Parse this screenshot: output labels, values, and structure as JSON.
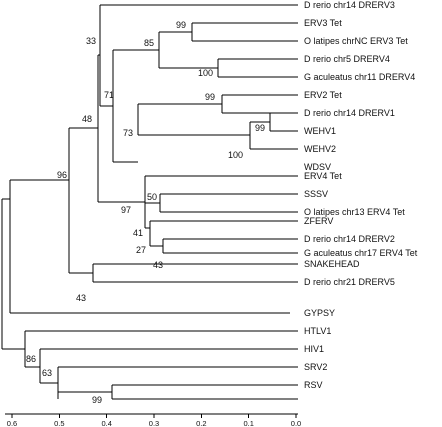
{
  "tree": {
    "taxa": [
      "D rerio chr14 DRERV3",
      "ERV3 Tet",
      "O latipes chrNC ERV3  Tet",
      "D rerio chr5 DRERV4",
      "G aculeatus chr11 DRERV4",
      "ERV2 Tet",
      "D rerio chr14 DRERV1",
      "WEHV1",
      "WEHV2",
      "WDSV",
      "ERV4 Tet",
      "SSSV",
      "O latipes chr13 ERV4  Tet",
      "ZFERV",
      "D rerio chr14 DRERV2",
      "G aculeatus chr17 ERV4 Tet",
      "SNAKEHEAD",
      "D rerio chr21 DRERV5",
      "GYPSY",
      "HTLV1",
      "HIV1",
      "SRV2",
      "RSV"
    ],
    "support_values": [
      "99",
      "85",
      "33",
      "100",
      "71",
      "99",
      "99",
      "73",
      "100",
      "48",
      "50",
      "97",
      "41",
      "27",
      "43",
      "96",
      "43",
      "86",
      "63",
      "99"
    ]
  },
  "axis": {
    "tick_labels": [
      "0.6",
      "0.5",
      "0.4",
      "0.3",
      "0.2",
      "0.1",
      "0.0"
    ],
    "ticks": [
      0.6,
      0.5,
      0.4,
      0.3,
      0.2,
      0.1,
      0.0
    ],
    "range": [
      0.6,
      0.0
    ]
  },
  "colors": {
    "line": "#000000",
    "text": "#111111",
    "background": "#ffffff"
  }
}
